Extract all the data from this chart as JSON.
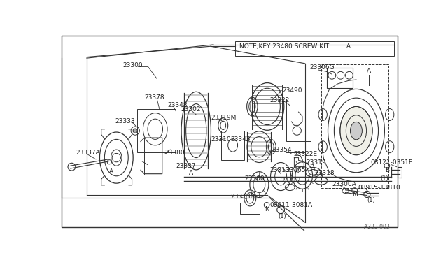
{
  "bg_color": "#ffffff",
  "border_color": "#444444",
  "line_color": "#333333",
  "text_color": "#222222",
  "title_note": "NOTE,KEY 23480 SCREW KIT.........A",
  "diagram_id": "A233 003",
  "figsize": [
    6.4,
    3.72
  ],
  "dpi": 100,
  "xlim": [
    0,
    640
  ],
  "ylim": [
    0,
    372
  ]
}
